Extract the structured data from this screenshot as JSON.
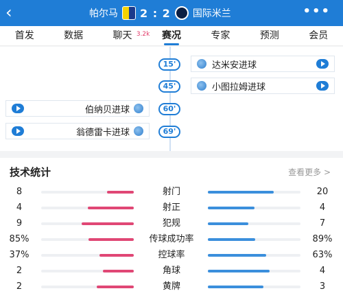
{
  "header": {
    "back_icon": "‹",
    "home_team": "帕尔马",
    "score": "2 : 2",
    "away_team": "国际米兰",
    "more_icon": "•••"
  },
  "tabs": [
    {
      "label": "首发"
    },
    {
      "label": "数据"
    },
    {
      "label": "聊天",
      "badge": "3.2k"
    },
    {
      "label": "赛况",
      "active": true
    },
    {
      "label": "专家"
    },
    {
      "label": "预测"
    },
    {
      "label": "会员"
    }
  ],
  "timeline": {
    "events": [
      {
        "minute": "15'",
        "side": "right",
        "label": "达米安进球"
      },
      {
        "minute": "45'",
        "side": "right",
        "label": "小图拉姆进球"
      },
      {
        "minute": "60'",
        "side": "left",
        "label": "伯纳贝进球"
      },
      {
        "minute": "69'",
        "side": "left",
        "label": "翁德雷卡进球"
      }
    ]
  },
  "stats": {
    "title": "技术统计",
    "more_link": "查看更多 >",
    "colors": {
      "home": "#e04775",
      "away": "#3b8fdc"
    },
    "rows": [
      {
        "name": "射门",
        "home": "8",
        "away": "20",
        "home_share": 0.29,
        "away_share": 0.71
      },
      {
        "name": "射正",
        "home": "4",
        "away": "4",
        "home_share": 0.5,
        "away_share": 0.5
      },
      {
        "name": "犯规",
        "home": "9",
        "away": "7",
        "home_share": 0.56,
        "away_share": 0.44
      },
      {
        "name": "传球成功率",
        "home": "85%",
        "away": "89%",
        "home_share": 0.49,
        "away_share": 0.51
      },
      {
        "name": "控球率",
        "home": "37%",
        "away": "63%",
        "home_share": 0.37,
        "away_share": 0.63
      },
      {
        "name": "角球",
        "home": "2",
        "away": "4",
        "home_share": 0.33,
        "away_share": 0.67
      },
      {
        "name": "黄牌",
        "home": "2",
        "away": "3",
        "home_share": 0.4,
        "away_share": 0.6
      }
    ]
  }
}
